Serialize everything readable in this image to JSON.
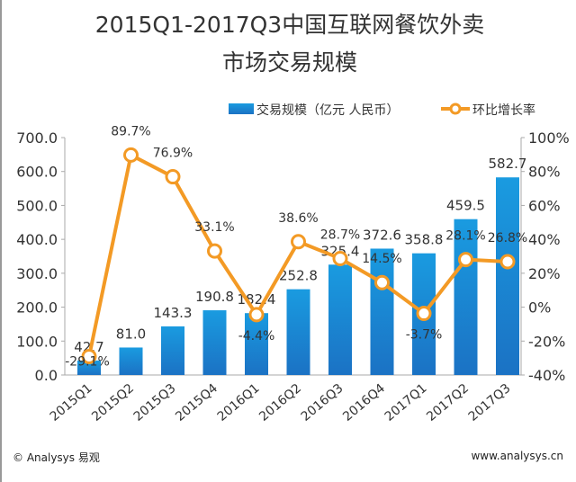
{
  "chart_data": {
    "type": "bar+line",
    "title": "2015Q1-2017Q3中国互联网餐饮外卖",
    "subtitle": "市场交易规模",
    "categories": [
      "2015Q1",
      "2015Q2",
      "2015Q3",
      "2015Q4",
      "2016Q1",
      "2016Q2",
      "2016Q3",
      "2016Q4",
      "2017Q1",
      "2017Q2",
      "2017Q3"
    ],
    "series": [
      {
        "name": "交易规模（亿元 人民币）",
        "type": "bar",
        "axis": "left",
        "color": "#1a8fd8",
        "values": [
          42.7,
          81.0,
          143.3,
          190.8,
          182.4,
          252.8,
          325.4,
          372.6,
          358.8,
          459.5,
          582.7
        ]
      },
      {
        "name": "环比增长率",
        "type": "line",
        "axis": "right",
        "color": "#f39a25",
        "values": [
          -29.1,
          89.7,
          76.9,
          33.1,
          -4.4,
          38.6,
          28.7,
          14.5,
          -3.7,
          28.1,
          26.8
        ]
      }
    ],
    "left_axis": {
      "ylim": [
        0,
        700
      ],
      "ticks": [
        "0.0",
        "100.0",
        "200.0",
        "300.0",
        "400.0",
        "500.0",
        "600.0",
        "700.0"
      ]
    },
    "right_axis": {
      "ylim": [
        -40,
        100
      ],
      "ticks": [
        "-40%",
        "-20%",
        "0%",
        "20%",
        "40%",
        "60%",
        "80%",
        "100%"
      ]
    },
    "legend": "top-right",
    "grid": false
  },
  "footer": {
    "left": "© Analysys 易观",
    "right": "www.analysys.cn"
  }
}
